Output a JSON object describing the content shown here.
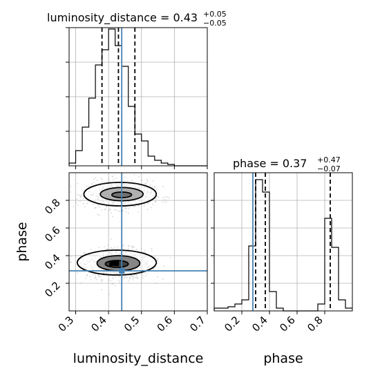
{
  "chart_data": [
    {
      "type": "histogram",
      "panel": "top-left",
      "title_main": "luminosity_distance = 0.43",
      "title_sup": "+0.05",
      "title_sub": "−0.05",
      "xlim": [
        0.28,
        0.7
      ],
      "ylim": [
        0,
        1.0
      ],
      "y_tick_values": [
        0.25,
        0.5,
        0.75,
        1.0
      ],
      "bins": {
        "x_start": 0.28,
        "width": 0.02,
        "heights": [
          0.02,
          0.11,
          0.28,
          0.49,
          0.73,
          0.84,
          0.99,
          0.87,
          0.72,
          0.43,
          0.23,
          0.18,
          0.07,
          0.04,
          0.02,
          0.01,
          0.0,
          0.0,
          0.0,
          0.0,
          0.0
        ]
      },
      "quantiles": [
        0.38,
        0.43,
        0.48
      ],
      "truth": 0.44,
      "grid": true
    },
    {
      "type": "scatter_contour",
      "panel": "bottom-left",
      "xlabel": "luminosity_distance",
      "ylabel": "phase",
      "xlim": [
        0.28,
        0.7
      ],
      "ylim": [
        0.0,
        1.0
      ],
      "x_ticks": [
        "0.3",
        "0.4",
        "0.5",
        "0.6",
        "0.7"
      ],
      "y_ticks": [
        "0.2",
        "0.4",
        "0.6",
        "0.8"
      ],
      "x_tick_values": [
        0.3,
        0.4,
        0.5,
        0.6,
        0.7
      ],
      "y_tick_values": [
        0.2,
        0.4,
        0.6,
        0.8
      ],
      "modes": [
        {
          "x": 0.43,
          "y": 0.34,
          "sx": 0.05,
          "sy": 0.055,
          "n": 900
        },
        {
          "x": 0.435,
          "y": 0.84,
          "sx": 0.05,
          "sy": 0.05,
          "n": 700
        }
      ],
      "contours": [
        {
          "cx": 0.425,
          "cy": 0.34,
          "rx": 0.035,
          "ry": 0.025,
          "fill": "#3a3a3a"
        },
        {
          "cx": 0.43,
          "cy": 0.345,
          "rx": 0.065,
          "ry": 0.055,
          "fill": "#7a7a7a"
        },
        {
          "cx": 0.425,
          "cy": 0.35,
          "rx": 0.12,
          "ry": 0.09,
          "fill": "none"
        },
        {
          "cx": 0.44,
          "cy": 0.84,
          "rx": 0.03,
          "ry": 0.02,
          "fill": "#6a6a6a"
        },
        {
          "cx": 0.44,
          "cy": 0.845,
          "rx": 0.065,
          "ry": 0.048,
          "fill": "#a8a8a8"
        },
        {
          "cx": 0.435,
          "cy": 0.845,
          "rx": 0.11,
          "ry": 0.085,
          "fill": "none"
        }
      ],
      "truth": {
        "x": 0.44,
        "y": 0.29
      },
      "grid": true
    },
    {
      "type": "histogram",
      "panel": "bottom-right",
      "title_main": "phase = 0.37",
      "title_sup": "+0.47",
      "title_sub": "−0.07",
      "xlabel": "phase",
      "xlim": [
        0.0,
        1.0
      ],
      "ylim": [
        0,
        1.0
      ],
      "x_ticks": [
        "0.2",
        "0.4",
        "0.6",
        "0.8"
      ],
      "x_tick_values": [
        0.2,
        0.4,
        0.6,
        0.8
      ],
      "y_tick_values": [
        0.2,
        0.4,
        0.6,
        0.8
      ],
      "bins": {
        "x_start": 0.0,
        "width": 0.05,
        "heights": [
          0.02,
          0.02,
          0.03,
          0.05,
          0.08,
          0.47,
          0.95,
          0.86,
          0.14,
          0.02,
          0.0,
          0.0,
          0.0,
          0.0,
          0.0,
          0.05,
          0.67,
          0.46,
          0.08,
          0.02
        ]
      },
      "quantiles": [
        0.3,
        0.37,
        0.84
      ],
      "truth": 0.28,
      "grid": true
    }
  ],
  "colors": {
    "line": "#000000",
    "truth": "#4682b4",
    "grid": "#b0b0b0",
    "points": "#888888"
  }
}
